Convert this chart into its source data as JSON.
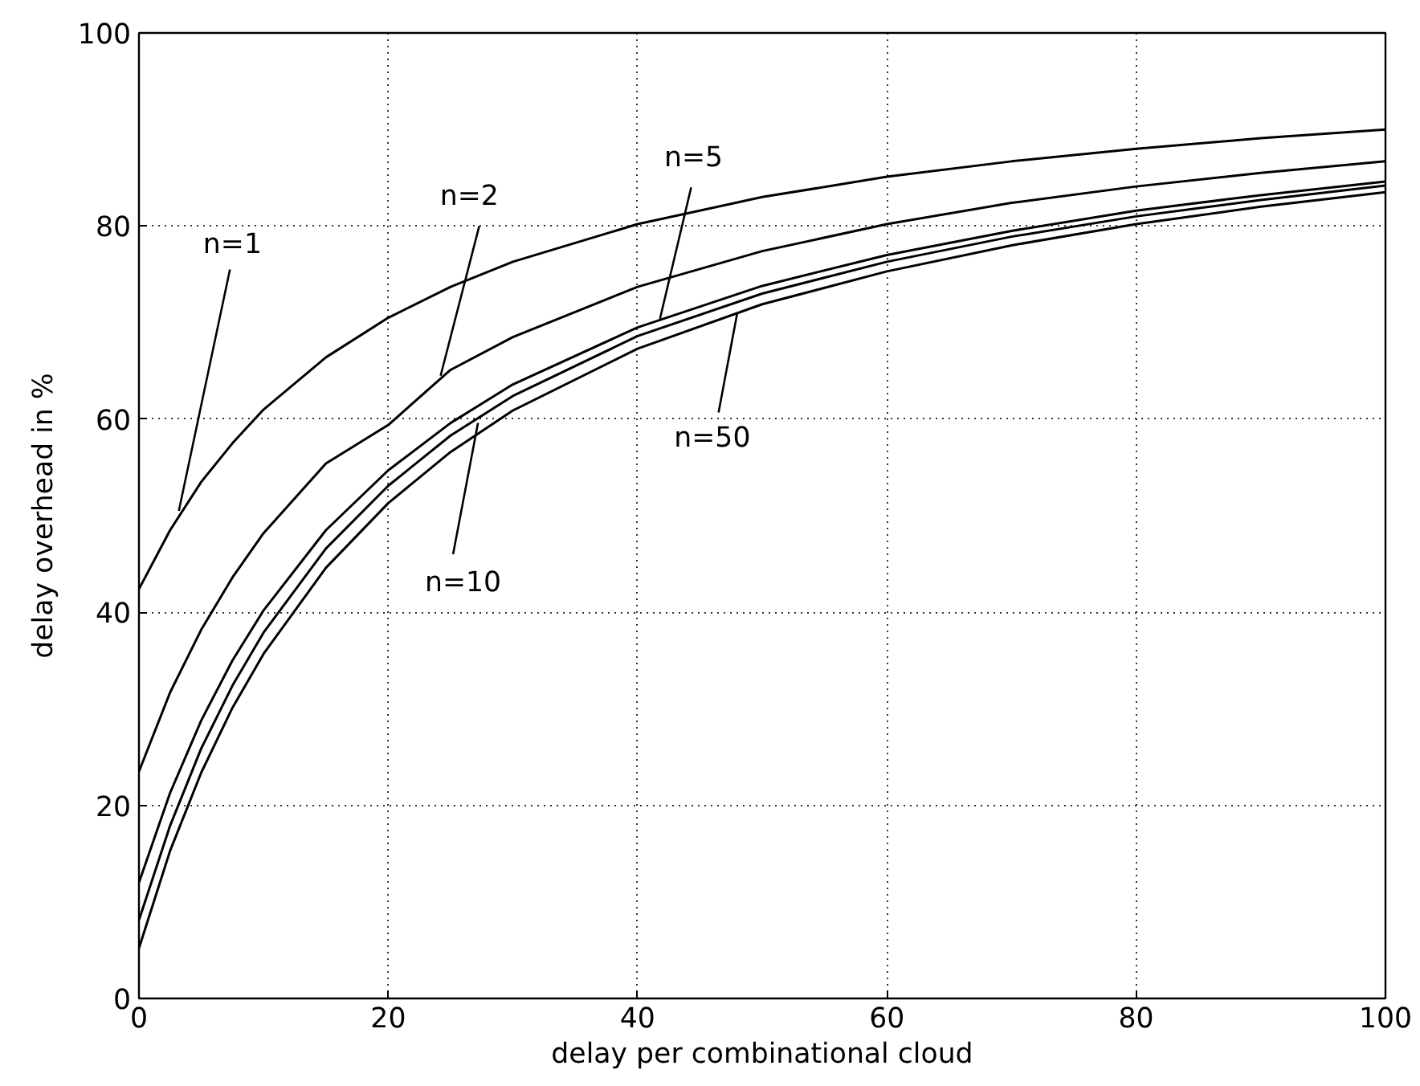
{
  "chart_data": {
    "type": "line",
    "xlabel": "delay per combinational cloud",
    "ylabel": "delay overhead in %",
    "x": [
      0,
      2.5,
      5,
      7.5,
      10,
      15,
      20,
      25,
      30,
      40,
      50,
      60,
      70,
      80,
      90,
      100
    ],
    "series": [
      {
        "color": "#000000",
        "values": [
          42.4,
          48.5,
          53.5,
          57.5,
          61.0,
          66.4,
          70.5,
          73.7,
          76.3,
          80.2,
          83.0,
          85.1,
          86.7,
          88.0,
          89.1,
          90.0
        ]
      },
      {
        "color": "#000000",
        "values": [
          23.5,
          31.7,
          38.2,
          43.6,
          48.2,
          55.4,
          59.4,
          65.1,
          68.5,
          73.7,
          77.4,
          80.2,
          82.4,
          84.1,
          85.5,
          86.7
        ]
      },
      {
        "color": "#000000",
        "values": [
          12.0,
          21.3,
          28.8,
          35.0,
          40.2,
          48.5,
          54.7,
          59.6,
          63.6,
          69.5,
          73.8,
          77.0,
          79.5,
          81.6,
          83.2,
          84.6
        ]
      },
      {
        "color": "#000000",
        "values": [
          8.1,
          17.9,
          25.9,
          32.4,
          37.9,
          46.6,
          53.1,
          58.3,
          62.4,
          68.6,
          73.0,
          76.3,
          78.9,
          81.0,
          82.7,
          84.2
        ]
      },
      {
        "color": "#000000",
        "values": [
          5.2,
          15.3,
          23.4,
          30.1,
          35.7,
          44.6,
          51.3,
          56.6,
          60.9,
          67.3,
          71.9,
          75.3,
          78.0,
          80.2,
          82.0,
          83.5
        ]
      }
    ],
    "annotations": [
      {
        "text": "n=1",
        "x": 3.2,
        "y": 50.5
      },
      {
        "text": "n=2",
        "x": 24.2,
        "y": 64.5
      },
      {
        "text": "n=5",
        "x": 41.8,
        "y": 70.4
      },
      {
        "text": "n=10",
        "x": 27.2,
        "y": 59.6
      },
      {
        "text": "n=50",
        "x": 48.0,
        "y": 71.0
      }
    ],
    "xlim": [
      0,
      100
    ],
    "ylim": [
      0,
      100
    ],
    "xticks": [
      0,
      20,
      40,
      60,
      80,
      100
    ],
    "yticks": [
      0,
      20,
      40,
      60,
      80,
      100
    ],
    "grid": true,
    "marker": "none",
    "line_style": "solid"
  }
}
